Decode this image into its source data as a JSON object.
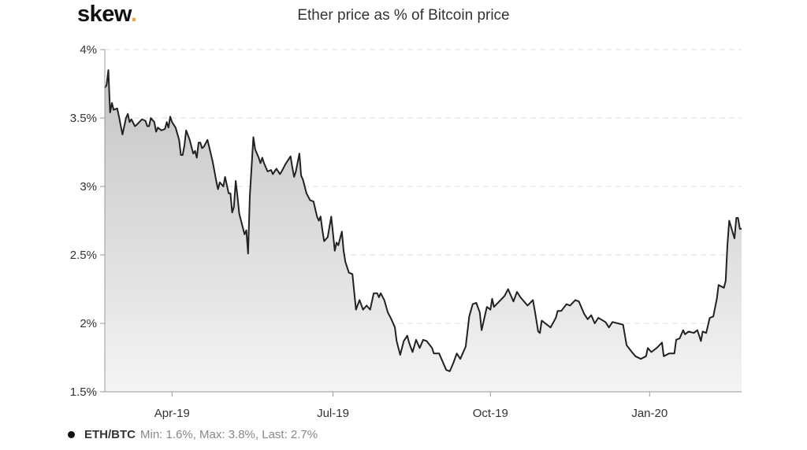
{
  "brand": {
    "name": "skew",
    "dot": "."
  },
  "chart_data": {
    "type": "area",
    "title": "Ether price as % of Bitcoin price",
    "xlabel": "",
    "ylabel": "",
    "x_units": "days relative to 2019-04-01",
    "xlim": [
      -38,
      322
    ],
    "ylim": [
      1.5,
      4
    ],
    "y_ticks": [
      1.5,
      2,
      2.5,
      3,
      3.5,
      4
    ],
    "y_tick_labels": [
      "1.5%",
      "2%",
      "2.5%",
      "3%",
      "3.5%",
      "4%"
    ],
    "x_ticks": [
      0,
      91,
      180,
      270
    ],
    "x_tick_labels": [
      "Apr-19",
      "Jul-19",
      "Oct-19",
      "Jan-20"
    ],
    "grid": true,
    "legend": {
      "position": "bottom-left",
      "name": "ETH/BTC",
      "stats": "Min: 1.6%, Max: 3.8%, Last: 2.7%"
    },
    "colors": {
      "line": "#222222",
      "fill_top": "#c4c4c4",
      "fill_bottom": "#f4f4f4",
      "logo_dot": "#e8a838"
    },
    "series": [
      {
        "name": "ETH/BTC",
        "x": [
          -38,
          -37,
          -36,
          -35,
          -34,
          -33,
          -31,
          -30,
          -28,
          -26,
          -25,
          -24,
          -23,
          -21,
          -20,
          -17,
          -15,
          -14,
          -13,
          -12,
          -10,
          -9,
          -8,
          -6,
          -4,
          -3,
          -2,
          -1,
          0,
          2,
          4,
          5,
          6,
          7,
          8,
          10,
          12,
          13,
          14,
          15,
          16,
          17,
          18,
          20,
          21,
          23,
          25,
          26,
          27,
          29,
          30,
          32,
          33,
          34,
          35,
          36,
          37,
          38,
          40,
          41,
          42,
          43,
          44,
          46,
          47,
          49,
          50,
          51,
          52,
          54,
          56,
          57,
          59,
          61,
          62,
          64,
          67,
          68,
          69,
          70,
          72,
          73,
          74,
          76,
          78,
          80,
          82,
          83,
          84,
          85,
          86,
          88,
          90,
          91,
          92,
          93,
          94,
          96,
          97,
          98,
          100,
          102,
          104,
          106,
          108,
          110,
          112,
          114,
          116,
          117,
          118,
          120,
          122,
          124,
          126,
          127,
          129,
          131,
          133,
          134,
          136,
          138,
          140,
          142,
          144,
          147,
          148,
          151,
          155,
          157,
          159,
          161,
          163,
          166,
          168,
          170,
          172,
          174,
          175,
          178,
          180,
          181,
          182,
          185,
          188,
          190,
          193,
          195,
          197,
          201,
          204,
          205,
          207,
          208,
          209,
          214,
          217,
          218,
          220,
          223,
          225,
          228,
          230,
          233,
          235,
          237,
          239,
          241,
          245,
          247,
          249,
          252,
          255,
          257,
          260,
          262,
          265,
          268,
          269,
          271,
          274,
          277,
          278,
          281,
          284,
          285,
          287,
          289,
          290,
          292,
          295,
          297,
          299,
          300,
          302,
          304,
          306,
          308,
          309,
          312,
          313,
          314,
          315,
          318,
          319,
          320,
          321,
          322
        ],
        "y": [
          3.72,
          3.74,
          3.85,
          3.54,
          3.61,
          3.56,
          3.57,
          3.51,
          3.38,
          3.5,
          3.53,
          3.47,
          3.49,
          3.44,
          3.45,
          3.49,
          3.48,
          3.44,
          3.44,
          3.5,
          3.47,
          3.4,
          3.43,
          3.41,
          3.42,
          3.47,
          3.43,
          3.51,
          3.47,
          3.43,
          3.34,
          3.23,
          3.23,
          3.3,
          3.41,
          3.34,
          3.24,
          3.26,
          3.21,
          3.32,
          3.32,
          3.28,
          3.29,
          3.34,
          3.29,
          3.18,
          3.04,
          2.98,
          3.03,
          3.0,
          3.07,
          2.95,
          2.95,
          2.81,
          2.85,
          3.04,
          2.93,
          2.8,
          2.7,
          2.65,
          2.68,
          2.51,
          2.93,
          3.36,
          3.27,
          3.21,
          3.17,
          3.21,
          3.17,
          3.11,
          3.12,
          3.09,
          3.13,
          3.09,
          3.11,
          3.16,
          3.22,
          3.14,
          3.07,
          3.11,
          3.24,
          3.08,
          3.05,
          2.95,
          2.9,
          2.89,
          2.78,
          2.75,
          2.78,
          2.68,
          2.6,
          2.63,
          2.78,
          2.66,
          2.53,
          2.59,
          2.57,
          2.67,
          2.53,
          2.45,
          2.37,
          2.36,
          2.1,
          2.17,
          2.1,
          2.13,
          2.1,
          2.22,
          2.22,
          2.19,
          2.22,
          2.17,
          2.08,
          2.03,
          1.97,
          1.87,
          1.77,
          1.87,
          1.91,
          1.86,
          1.79,
          1.88,
          1.82,
          1.88,
          1.87,
          1.82,
          1.78,
          1.78,
          1.66,
          1.65,
          1.71,
          1.78,
          1.74,
          1.83,
          2.05,
          2.14,
          2.15,
          2.08,
          1.95,
          2.12,
          2.1,
          2.18,
          2.12,
          2.16,
          2.2,
          2.25,
          2.16,
          2.23,
          2.19,
          2.13,
          2.17,
          2.1,
          1.94,
          1.93,
          2.02,
          1.97,
          2.04,
          2.09,
          2.09,
          2.14,
          2.13,
          2.17,
          2.16,
          2.07,
          2.03,
          2.06,
          2.0,
          2.04,
          2.01,
          1.97,
          2.01,
          2.0,
          1.99,
          1.84,
          1.79,
          1.76,
          1.74,
          1.76,
          1.82,
          1.79,
          1.82,
          1.86,
          1.76,
          1.78,
          1.78,
          1.88,
          1.89,
          1.95,
          1.92,
          1.94,
          1.93,
          1.95,
          1.87,
          1.94,
          1.93,
          2.04,
          2.05,
          2.18,
          2.28,
          2.26,
          2.31,
          2.57,
          2.75,
          2.62,
          2.77,
          2.77,
          2.69,
          2.69
        ]
      }
    ]
  }
}
